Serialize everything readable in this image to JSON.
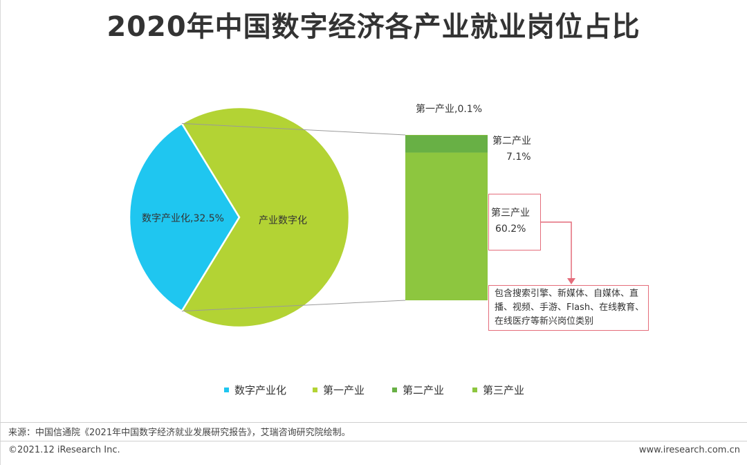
{
  "title": "2020年中国数字经济各产业就业岗位占比",
  "chart_data": [
    {
      "type": "pie",
      "slices": [
        {
          "name": "数字产业化",
          "value": 32.5,
          "label": "数字产业化,32.5%",
          "color": "#1fc6f0"
        },
        {
          "name": "产业数字化",
          "value": 67.5,
          "label": "产业数字化",
          "color": "#b3d334"
        }
      ]
    },
    {
      "type": "bar",
      "stacked": true,
      "segments": [
        {
          "name": "第一产业",
          "value": 0.1,
          "label_name": "第一产业,0.1%",
          "label_value": "",
          "color": "#b3d334"
        },
        {
          "name": "第二产业",
          "value": 7.1,
          "label_name": "第二产业",
          "label_value": "7.1%",
          "color": "#68b045"
        },
        {
          "name": "第三产业",
          "value": 60.2,
          "label_name": "第三产业",
          "label_value": "60.2%",
          "color": "#8dc63f"
        }
      ]
    }
  ],
  "annotation": {
    "line1": "包含搜索引擎、新媒体、自媒体、直",
    "line2": "播、视频、手游、Flash、在线教育、",
    "line3": "在线医疗等新兴岗位类别",
    "border_color": "#e46c7a"
  },
  "legend": [
    {
      "label": "数字产业化",
      "color": "#1fc6f0"
    },
    {
      "label": "第一产业",
      "color": "#b3d334"
    },
    {
      "label": "第二产业",
      "color": "#68b045"
    },
    {
      "label": "第三产业",
      "color": "#8dc63f"
    }
  ],
  "source": "来源：中国信通院《2021年中国数字经济就业发展研究报告》，艾瑞咨询研究院绘制。",
  "copyright": "©2021.12 iResearch Inc.",
  "website": "www.iresearch.com.cn"
}
